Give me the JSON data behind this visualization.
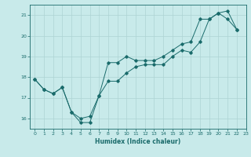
{
  "xlabel": "Humidex (Indice chaleur)",
  "ylabel": "",
  "bg_color": "#c8eaea",
  "grid_color": "#aed4d4",
  "line_color": "#1a6b6b",
  "marker_color": "#1a6b6b",
  "xlim": [
    -0.5,
    23
  ],
  "ylim": [
    15.5,
    21.5
  ],
  "xticks": [
    0,
    1,
    2,
    3,
    4,
    5,
    6,
    7,
    8,
    9,
    10,
    11,
    12,
    13,
    14,
    15,
    16,
    17,
    18,
    19,
    20,
    21,
    22,
    23
  ],
  "yticks": [
    16,
    17,
    18,
    19,
    20,
    21
  ],
  "line1_x": [
    0,
    1,
    2,
    3,
    4,
    5,
    6,
    7,
    8,
    9,
    10,
    11,
    12,
    13,
    14,
    15,
    16,
    17,
    18,
    19,
    20,
    21,
    22
  ],
  "line1_y": [
    17.9,
    17.4,
    17.2,
    17.5,
    16.3,
    15.8,
    15.8,
    17.1,
    17.8,
    17.8,
    18.2,
    18.5,
    18.6,
    18.6,
    18.6,
    19.0,
    19.3,
    19.2,
    19.7,
    20.8,
    21.1,
    21.2,
    20.3
  ],
  "line2_x": [
    0,
    1,
    2,
    3,
    4,
    5,
    6,
    7,
    8,
    9,
    10,
    11,
    12,
    13,
    14,
    15,
    16,
    17,
    18,
    19,
    20,
    21,
    22
  ],
  "line2_y": [
    17.9,
    17.4,
    17.2,
    17.5,
    16.3,
    16.0,
    16.1,
    17.1,
    18.7,
    18.7,
    19.0,
    18.8,
    18.8,
    18.8,
    19.0,
    19.3,
    19.6,
    19.7,
    20.8,
    20.8,
    21.1,
    20.8,
    20.3
  ],
  "title_fontsize": 6,
  "label_fontsize": 5.5,
  "tick_fontsize": 4.5
}
